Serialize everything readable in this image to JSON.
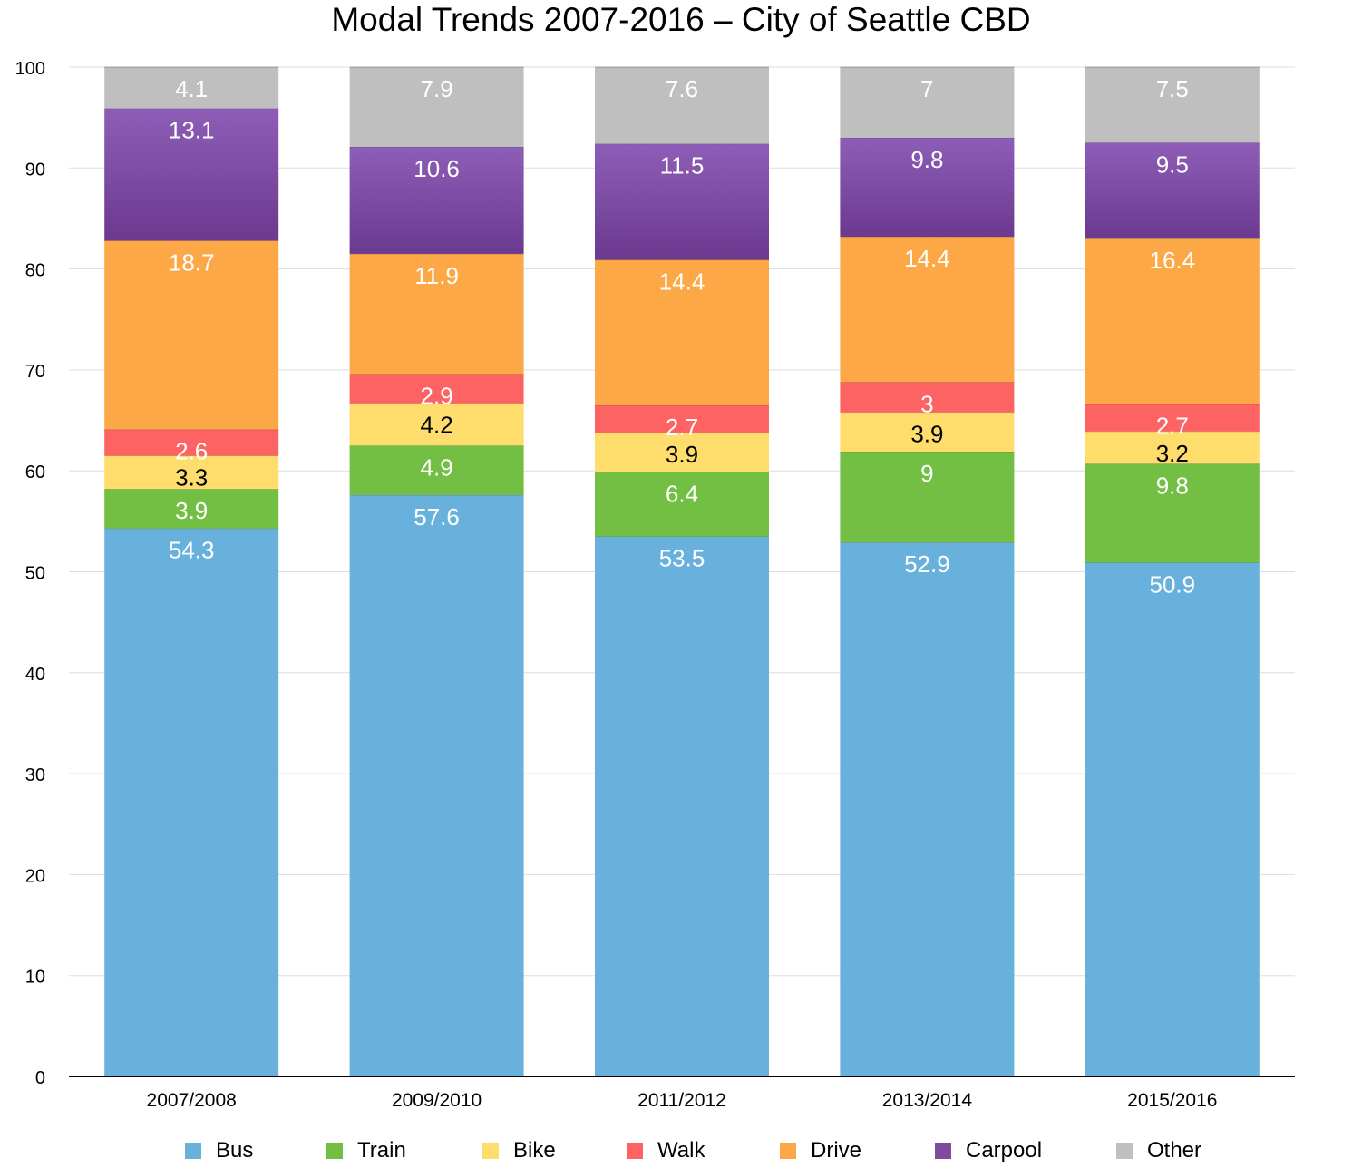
{
  "chart_data": {
    "type": "bar",
    "stacked": true,
    "title": "Modal Trends 2007-2016 – City of Seattle CBD",
    "xlabel": "",
    "ylabel": "",
    "ylim": [
      0,
      100
    ],
    "yticks": [
      0,
      10,
      20,
      30,
      40,
      50,
      60,
      70,
      80,
      90,
      100
    ],
    "grid": true,
    "legend_position": "bottom",
    "categories": [
      "2007/2008",
      "2009/2010",
      "2011/2012",
      "2013/2014",
      "2015/2016"
    ],
    "series": [
      {
        "name": "Bus",
        "color": "#69B1DD",
        "label_color": "#ffffff",
        "values": [
          54.3,
          57.6,
          53.5,
          52.9,
          50.9
        ]
      },
      {
        "name": "Train",
        "color": "#72BF44",
        "label_color": "#ffffff",
        "values": [
          3.9,
          4.9,
          6.4,
          9,
          9.8
        ]
      },
      {
        "name": "Bike",
        "color": "#FEDD6D",
        "label_color": "#000000",
        "values": [
          3.3,
          4.2,
          3.9,
          3.9,
          3.2
        ]
      },
      {
        "name": "Walk",
        "color": "#FD6363",
        "label_color": "#ffffff",
        "values": [
          2.6,
          2.9,
          2.7,
          3,
          2.7
        ]
      },
      {
        "name": "Drive",
        "color": "#FDA846",
        "label_color": "#ffffff",
        "values": [
          18.7,
          11.9,
          14.4,
          14.4,
          16.4
        ]
      },
      {
        "name": "Carpool",
        "color": "#7E4B9E",
        "label_color": "#ffffff",
        "values": [
          13.1,
          10.6,
          11.5,
          9.8,
          9.5
        ]
      },
      {
        "name": "Other",
        "color": "#BFBFBF",
        "label_color": "#ffffff",
        "values": [
          4.1,
          7.9,
          7.6,
          7,
          7.5
        ]
      }
    ]
  }
}
